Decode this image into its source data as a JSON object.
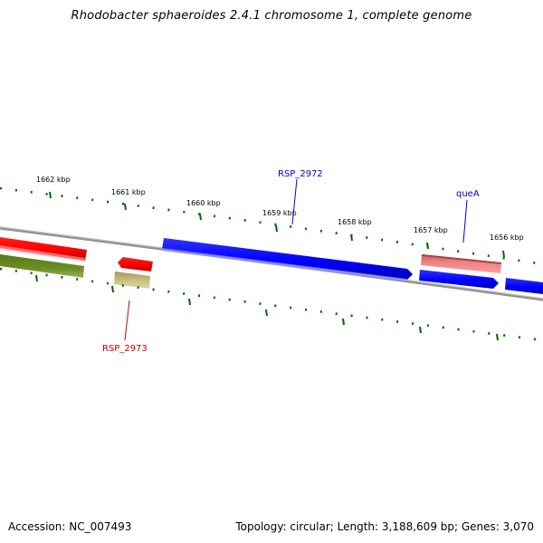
{
  "title": "Rhodobacter sphaeroides 2.4.1 chromosome 1, complete genome",
  "scale_labels": [
    "1662 kbp",
    "1661 kbp",
    "1660 kbp",
    "1659 kbp",
    "1658 kbp",
    "1657 kbp",
    "1656 kbp"
  ],
  "genes": {
    "rsp_2972": "RSP_2972",
    "quea": "queA",
    "rsp_2973": "RSP_2973"
  },
  "footer": {
    "accession": "Accession: NC_007493",
    "summary": "Topology: circular; Length: 3,188,609 bp; Genes: 3,070"
  },
  "colors": {
    "forward_strand": "#0000ff",
    "reverse_strand": "#ff0000",
    "reverse_pale": "#f08080",
    "olive_track": "#6b8e23",
    "khaki_track": "#c8c080",
    "backbone": "#808080",
    "scale": "#006400",
    "label_blue": "#0000cc",
    "label_red": "#cc0000"
  }
}
